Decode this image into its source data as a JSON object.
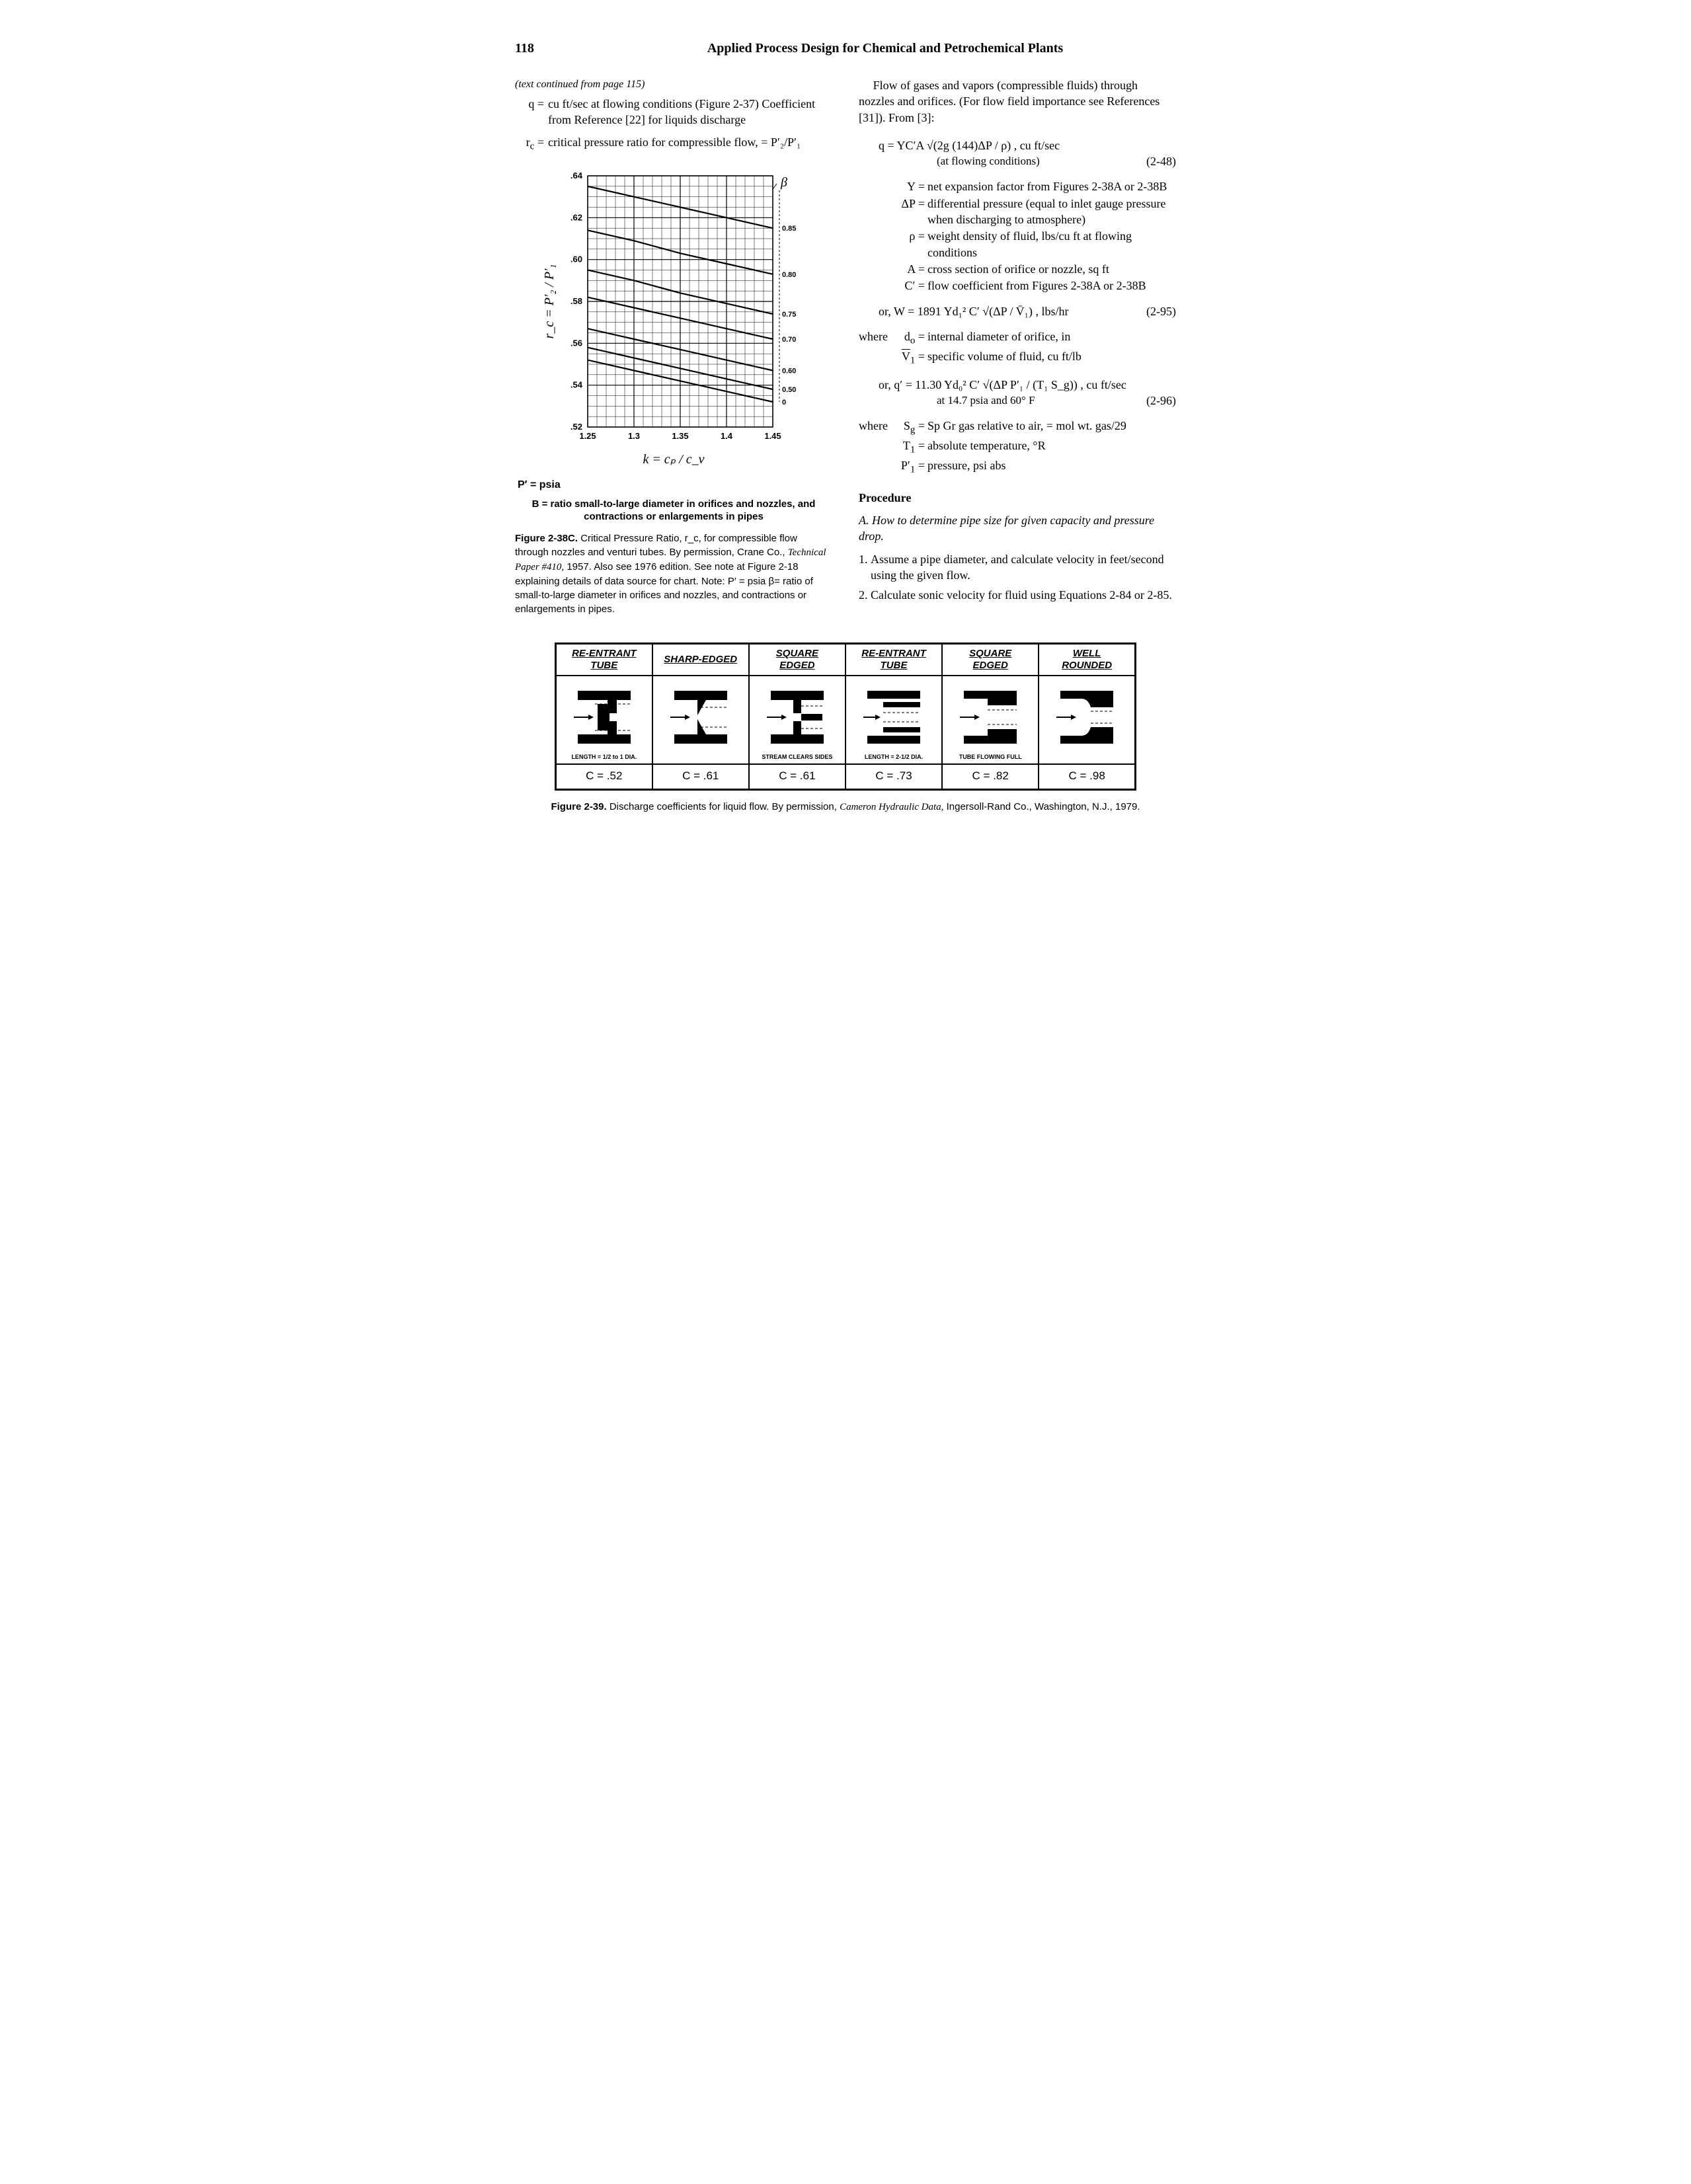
{
  "header": {
    "page_number": "118",
    "book_title": "Applied Process Design for Chemical and Petrochemical Plants"
  },
  "left": {
    "continued": "(text continued from page 115)",
    "q_def": "cu ft/sec at flowing conditions (Figure 2-37) Coefficient from Reference [22] for liquids discharge",
    "rc_def": "critical pressure ratio for compressible flow, = P′₂/P′₁",
    "chart": {
      "type": "line",
      "xlabel": "k = cₚ / c_v",
      "ylabel": "r_c = P′₂ / P′₁",
      "xlim": [
        1.25,
        1.45
      ],
      "xtick_step": 0.05,
      "xticks": [
        "1.25",
        "1.3",
        "1.35",
        "1.4",
        "1.45"
      ],
      "ylim": [
        0.52,
        0.64
      ],
      "ytick_step": 0.02,
      "yticks": [
        ".52",
        ".54",
        ".56",
        ".58",
        ".60",
        ".62",
        ".64"
      ],
      "grid_color": "#000000",
      "background_color": "#ffffff",
      "line_width": 2.2,
      "series": [
        {
          "beta": 0,
          "points": [
            [
              1.25,
              0.552
            ],
            [
              1.3,
              0.547
            ],
            [
              1.35,
              0.542
            ],
            [
              1.4,
              0.537
            ],
            [
              1.45,
              0.532
            ]
          ]
        },
        {
          "beta": 0.5,
          "points": [
            [
              1.25,
              0.558
            ],
            [
              1.3,
              0.553
            ],
            [
              1.35,
              0.548
            ],
            [
              1.4,
              0.543
            ],
            [
              1.45,
              0.538
            ]
          ]
        },
        {
          "beta": 0.6,
          "points": [
            [
              1.25,
              0.567
            ],
            [
              1.3,
              0.562
            ],
            [
              1.35,
              0.557
            ],
            [
              1.4,
              0.552
            ],
            [
              1.45,
              0.547
            ]
          ]
        },
        {
          "beta": 0.7,
          "points": [
            [
              1.25,
              0.582
            ],
            [
              1.3,
              0.577
            ],
            [
              1.35,
              0.572
            ],
            [
              1.4,
              0.567
            ],
            [
              1.45,
              0.562
            ]
          ]
        },
        {
          "beta": 0.75,
          "points": [
            [
              1.25,
              0.595
            ],
            [
              1.3,
              0.59
            ],
            [
              1.35,
              0.584
            ],
            [
              1.4,
              0.579
            ],
            [
              1.45,
              0.574
            ]
          ]
        },
        {
          "beta": 0.8,
          "points": [
            [
              1.25,
              0.614
            ],
            [
              1.3,
              0.609
            ],
            [
              1.35,
              0.603
            ],
            [
              1.4,
              0.598
            ],
            [
              1.45,
              0.593
            ]
          ]
        },
        {
          "beta": 0.85,
          "points": [
            [
              1.25,
              0.635
            ],
            [
              1.3,
              0.63
            ],
            [
              1.35,
              0.625
            ],
            [
              1.4,
              0.62
            ],
            [
              1.45,
              0.615
            ]
          ]
        }
      ],
      "beta_label": "β",
      "right_labels": [
        "0",
        "0.50",
        "0.60",
        "0.70",
        "0.75",
        "0.80",
        "0.85"
      ]
    },
    "psia_note": "P′ = psia",
    "beta_note": "B = ratio small-to-large diameter in orifices and nozzles, and contractions or enlargements in pipes",
    "fig_caption": {
      "lead": "Figure 2-38C.",
      "body1": " Critical Pressure Ratio, r_c, for compressible flow through nozzles and venturi tubes. By permission, Crane Co., ",
      "ital": "Technical Paper #410,",
      "body2": " 1957. Also see 1976 edition. See note at Figure 2-18 explaining details of data source for chart. Note: P′ = psia β= ratio of small-to-large diameter in orifices and nozzles, and contractions or enlargements in pipes."
    }
  },
  "right": {
    "intro": "Flow of gases and vapors (compressible fluids) through nozzles and orifices. (For flow field importance see References [31]). From [3]:",
    "eq48": {
      "formula": "q = YC′A √(2g (144)ΔP / ρ) , cu ft/sec",
      "note": "(at flowing conditions)",
      "num": "(2-48)"
    },
    "defs48": [
      {
        "sym": "Y",
        "txt": "net expansion factor from Figures 2-38A or 2-38B"
      },
      {
        "sym": "ΔP",
        "txt": "differential pressure (equal to inlet gauge pressure when discharging to atmosphere)"
      },
      {
        "sym": "ρ",
        "txt": "weight density of fluid, lbs/cu ft at flowing conditions"
      },
      {
        "sym": "A",
        "txt": "cross section of orifice or nozzle, sq ft"
      },
      {
        "sym": "C′",
        "txt": "flow coefficient from Figures 2-38A or 2-38B"
      }
    ],
    "eq95": {
      "formula": "or, W = 1891 Yd₁² C′ √(ΔP / V̄₁) , lbs/hr",
      "num": "(2-95)"
    },
    "where95": [
      {
        "sym": "d_o",
        "txt": "internal diameter of orifice, in"
      },
      {
        "sym": "V̄₁",
        "txt": "specific volume of fluid, cu ft/lb"
      }
    ],
    "eq96": {
      "formula": "or, q′ = 11.30 Yd₀² C′ √(ΔP P′₁ / (T₁ S_g)) , cu ft/sec",
      "note": "at 14.7 psia and  60° F",
      "num": "(2-96)"
    },
    "where96": [
      {
        "sym": "S_g",
        "txt": "Sp Gr gas relative to air, = mol wt. gas/29"
      },
      {
        "sym": "T₁",
        "txt": "absolute temperature, °R"
      },
      {
        "sym": "P′₁",
        "txt": "pressure, psi abs"
      }
    ],
    "procedure_heading": "Procedure",
    "proc_sub": "A. How to determine pipe size for given capacity and pressure drop.",
    "proc_items": [
      "Assume a pipe diameter, and calculate velocity in feet/second using the given flow.",
      "Calculate sonic velocity for fluid using Equations 2-84 or 2-85."
    ]
  },
  "coef_table": {
    "headers": [
      "RE-ENTRANT TUBE",
      "SHARP-EDGED",
      "SQUARE EDGED",
      "RE-ENTRANT TUBE",
      "SQUARE EDGED",
      "WELL ROUNDED"
    ],
    "notes": [
      "LENGTH = 1/2 to 1 DIA.",
      "",
      "STREAM CLEARS SIDES",
      "LENGTH = 2-1/2 DIA.",
      "TUBE FLOWING FULL",
      ""
    ],
    "cvalues": [
      "C = .52",
      "C = .61",
      "C = .61",
      "C = .73",
      "C = .82",
      "C = .98"
    ]
  },
  "fig39_caption": {
    "lead": "Figure 2-39.",
    "body1": " Discharge coefficients for liquid flow. By permission, ",
    "ital": "Cameron Hydraulic Data,",
    "body2": " Ingersoll-Rand Co., Washington, N.J., 1979."
  }
}
